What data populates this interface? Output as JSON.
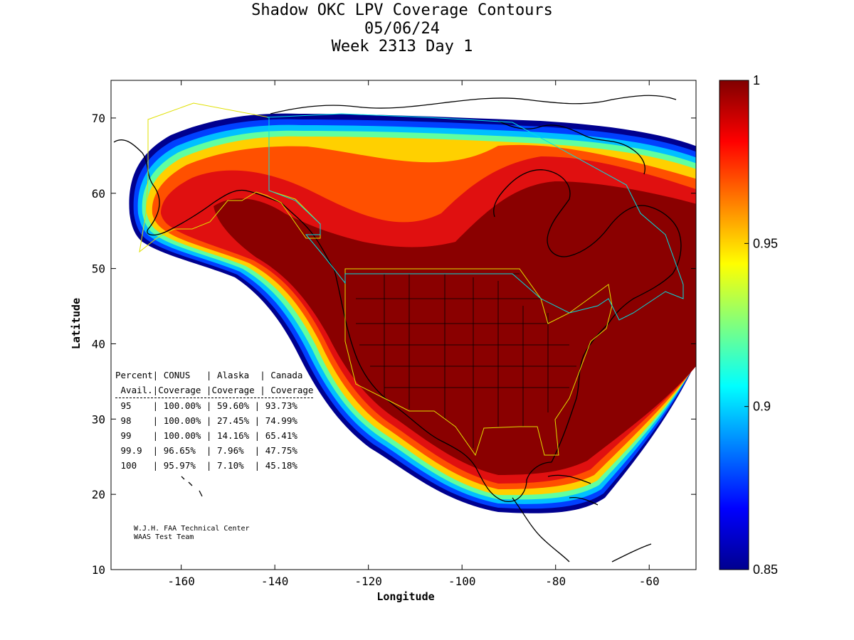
{
  "title": {
    "line1": "Shadow OKC LPV Coverage Contours",
    "line2": "05/06/24",
    "line3": "Week 2313 Day 1"
  },
  "axes": {
    "xlabel": "Longitude",
    "ylabel": "Latitude",
    "xlim": [
      -175,
      -50
    ],
    "ylim": [
      10,
      75
    ],
    "xticks": [
      -160,
      -140,
      -120,
      -100,
      -80,
      -60
    ],
    "yticks": [
      10,
      20,
      30,
      40,
      50,
      60,
      70
    ]
  },
  "colorbar": {
    "range": [
      0.85,
      1
    ],
    "ticks": [
      "1",
      "0.95",
      "0.9",
      "0.85"
    ],
    "colormap": "jet"
  },
  "stats_table": {
    "header1": "Percent| CONUS   | Alaska  | Canada",
    "header2": " Avail.|Coverage |Coverage | Coverage",
    "rows": [
      {
        "pct": "95",
        "conus": "100.00%",
        "alaska": "59.60%",
        "canada": "93.73%"
      },
      {
        "pct": "98",
        "conus": "100.00%",
        "alaska": "27.45%",
        "canada": "74.99%"
      },
      {
        "pct": "99",
        "conus": "100.00%",
        "alaska": "14.16%",
        "canada": "65.41%"
      },
      {
        "pct": "99.9",
        "conus": "96.65%",
        "alaska": "7.96%",
        "canada": "47.75%"
      },
      {
        "pct": "100",
        "conus": "95.97%",
        "alaska": "7.10%",
        "canada": "45.18%"
      }
    ]
  },
  "credit": {
    "line1": "W.J.H. FAA Technical Center",
    "line2": "WAAS Test Team"
  }
}
